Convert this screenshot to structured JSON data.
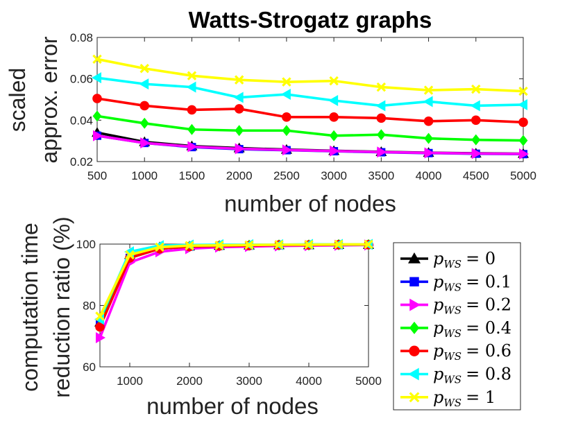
{
  "chart_data": [
    {
      "type": "line",
      "title": "Watts-Strogatz graphs",
      "xlabel": "number of nodes",
      "ylabel": [
        "scaled",
        "approx. error"
      ],
      "x": [
        500,
        1000,
        1500,
        2000,
        2500,
        3000,
        3500,
        4000,
        4500,
        5000
      ],
      "xticks": [
        "500",
        "1000",
        "1500",
        "2000",
        "2500",
        "3000",
        "3500",
        "4000",
        "4500",
        "5000"
      ],
      "yticks": [
        "0.02",
        "0.04",
        "0.06",
        "0.08"
      ],
      "xlim": [
        500,
        5000
      ],
      "ylim": [
        0.02,
        0.08
      ],
      "series": [
        {
          "name": "p_WS = 0",
          "color": "#000000",
          "marker": "triangle-up",
          "values": [
            0.034,
            0.0295,
            0.0275,
            0.0265,
            0.0258,
            0.0252,
            0.0247,
            0.0243,
            0.024,
            0.0238
          ]
        },
        {
          "name": "p_WS = 0.1",
          "color": "#0000ff",
          "marker": "square",
          "values": [
            0.0325,
            0.029,
            0.027,
            0.026,
            0.0255,
            0.025,
            0.0245,
            0.0241,
            0.0238,
            0.0236
          ]
        },
        {
          "name": "p_WS = 0.2",
          "color": "#ff00ff",
          "marker": "triangle-right",
          "values": [
            0.0325,
            0.029,
            0.0272,
            0.0262,
            0.0256,
            0.0251,
            0.0246,
            0.0242,
            0.0239,
            0.0237
          ]
        },
        {
          "name": "p_WS = 0.4",
          "color": "#00ff00",
          "marker": "diamond",
          "values": [
            0.042,
            0.0385,
            0.0355,
            0.035,
            0.035,
            0.0325,
            0.033,
            0.0312,
            0.0305,
            0.0302
          ]
        },
        {
          "name": "p_WS = 0.6",
          "color": "#ff0000",
          "marker": "circle",
          "values": [
            0.0505,
            0.047,
            0.045,
            0.0455,
            0.0415,
            0.0415,
            0.041,
            0.0395,
            0.04,
            0.039
          ]
        },
        {
          "name": "p_WS = 0.8",
          "color": "#00ffff",
          "marker": "triangle-left",
          "values": [
            0.0605,
            0.0575,
            0.056,
            0.051,
            0.0525,
            0.0495,
            0.047,
            0.049,
            0.047,
            0.0475
          ]
        },
        {
          "name": "p_WS = 1",
          "color": "#ffff00",
          "marker": "x",
          "values": [
            0.0695,
            0.065,
            0.0615,
            0.0595,
            0.0585,
            0.059,
            0.056,
            0.0545,
            0.055,
            0.054
          ]
        }
      ]
    },
    {
      "type": "line",
      "xlabel": "number of nodes",
      "ylabel": [
        "computation time",
        "reduction ratio (%)"
      ],
      "x": [
        500,
        1000,
        1500,
        2000,
        2500,
        3000,
        3500,
        4000,
        4500,
        5000
      ],
      "xticks": [
        "1000",
        "2000",
        "3000",
        "4000",
        "5000"
      ],
      "yticks": [
        "60",
        "80",
        "100"
      ],
      "xlim": [
        500,
        5000
      ],
      "ylim": [
        60,
        100
      ],
      "series": [
        {
          "name": "p_WS = 0",
          "values": [
            74.5,
            96.5,
            99,
            99.3,
            99.5,
            99.6,
            99.7,
            99.7,
            99.8,
            99.8
          ]
        },
        {
          "name": "p_WS = 0.1",
          "values": [
            74,
            95.5,
            98.5,
            99.2,
            99.4,
            99.5,
            99.6,
            99.7,
            99.7,
            99.8
          ]
        },
        {
          "name": "p_WS = 0.2",
          "values": [
            69.5,
            94,
            97.5,
            98.5,
            99,
            99.2,
            99.4,
            99.5,
            99.6,
            99.7
          ]
        },
        {
          "name": "p_WS = 0.4",
          "values": [
            73.5,
            95.5,
            98.5,
            99.2,
            99.4,
            99.6,
            99.7,
            99.7,
            99.8,
            99.8
          ]
        },
        {
          "name": "p_WS = 0.6",
          "values": [
            73,
            95.5,
            98.5,
            99.2,
            99.4,
            99.5,
            99.7,
            99.7,
            99.8,
            99.8
          ]
        },
        {
          "name": "p_WS = 0.8",
          "values": [
            75.5,
            97.5,
            99.5,
            99.7,
            99.8,
            99.8,
            99.8,
            99.9,
            99.9,
            99.9
          ]
        },
        {
          "name": "p_WS = 1",
          "values": [
            76.5,
            96.5,
            99,
            99.5,
            99.6,
            99.7,
            99.8,
            99.8,
            99.9,
            99.9
          ]
        }
      ]
    }
  ],
  "legend": {
    "placement": "right-of-bottom-chart",
    "symbol": "p",
    "subscript": "WS",
    "values": [
      "0",
      "0.1",
      "0.2",
      "0.4",
      "0.6",
      "0.8",
      "1"
    ]
  }
}
